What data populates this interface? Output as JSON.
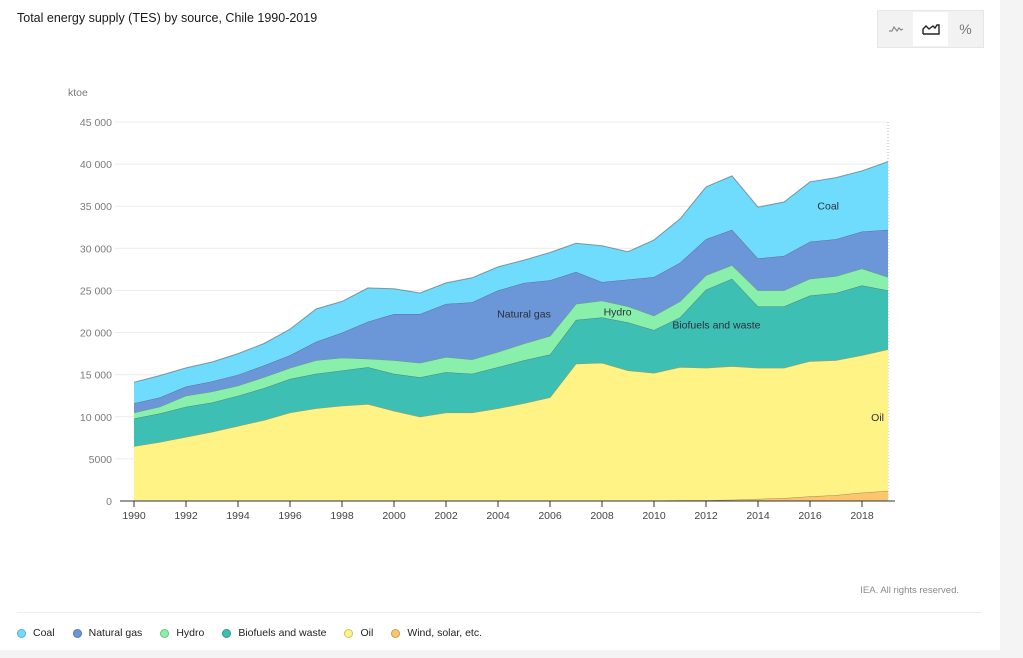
{
  "title": "Total energy supply (TES) by source, Chile 1990-2019",
  "toggle": {
    "options": [
      {
        "name": "line-chart-toggle",
        "icon": "line-chart-icon",
        "active": false
      },
      {
        "name": "area-chart-toggle",
        "icon": "area-chart-icon",
        "active": true
      },
      {
        "name": "percent-toggle",
        "icon": "percent-icon",
        "label": "%",
        "active": false
      }
    ]
  },
  "credit": "IEA. All rights reserved.",
  "legend": [
    {
      "label": "Coal",
      "color": "#6fdcfd"
    },
    {
      "label": "Natural gas",
      "color": "#6b96d8"
    },
    {
      "label": "Hydro",
      "color": "#88f0ab"
    },
    {
      "label": "Biofuels and waste",
      "color": "#3dbfb3"
    },
    {
      "label": "Oil",
      "color": "#fff385"
    },
    {
      "label": "Wind, solar, etc.",
      "color": "#fdc66c"
    }
  ],
  "chart_data": {
    "type": "area",
    "stacked": true,
    "title": "Total energy supply (TES) by source, Chile 1990-2019",
    "ylabel": "ktoe",
    "xlabel": "",
    "ylim": [
      0,
      45000
    ],
    "yticks": [
      0,
      5000,
      10000,
      15000,
      20000,
      25000,
      30000,
      35000,
      40000,
      45000
    ],
    "ytick_labels": [
      "0",
      "5000",
      "10 000",
      "15 000",
      "20 000",
      "25 000",
      "30 000",
      "35 000",
      "40 000",
      "45 000"
    ],
    "xticks": [
      1990,
      1992,
      1994,
      1996,
      1998,
      2000,
      2002,
      2004,
      2006,
      2008,
      2010,
      2012,
      2014,
      2016,
      2018
    ],
    "grid": true,
    "legend_position": "bottom",
    "x": [
      1990,
      1991,
      1992,
      1993,
      1994,
      1995,
      1996,
      1997,
      1998,
      1999,
      2000,
      2001,
      2002,
      2003,
      2004,
      2005,
      2006,
      2007,
      2008,
      2009,
      2010,
      2011,
      2012,
      2013,
      2014,
      2015,
      2016,
      2017,
      2018,
      2019
    ],
    "series": [
      {
        "name": "Wind, solar, etc.",
        "color": "#fdc66c",
        "values": [
          0,
          0,
          0,
          0,
          0,
          0,
          0,
          0,
          0,
          0,
          0,
          0,
          0,
          0,
          0,
          0,
          0,
          0,
          0,
          0,
          50,
          80,
          100,
          150,
          250,
          350,
          550,
          700,
          1000,
          1200
        ]
      },
      {
        "name": "Oil",
        "color": "#fff385",
        "values": [
          6500,
          7000,
          7600,
          8200,
          8900,
          9600,
          10500,
          11000,
          11300,
          11500,
          10700,
          10000,
          10500,
          10500,
          11000,
          11600,
          12300,
          16300,
          16400,
          15500,
          15150,
          15820,
          15700,
          15850,
          15550,
          15450,
          16050,
          16000,
          16300,
          16800
        ]
      },
      {
        "name": "Biofuels and waste",
        "color": "#3dbfb3",
        "values": [
          3300,
          3400,
          3600,
          3500,
          3600,
          3800,
          4000,
          4100,
          4200,
          4400,
          4400,
          4700,
          4800,
          4600,
          4900,
          5100,
          5100,
          5200,
          5400,
          5700,
          5100,
          5900,
          9300,
          10400,
          7300,
          7300,
          7800,
          8000,
          8300,
          7000
        ]
      },
      {
        "name": "Hydro",
        "color": "#88f0ab",
        "values": [
          700,
          800,
          1300,
          1300,
          1200,
          1300,
          1300,
          1600,
          1500,
          1000,
          1600,
          1700,
          1800,
          1700,
          1800,
          2000,
          2200,
          1900,
          2000,
          1900,
          1700,
          1900,
          1700,
          1600,
          1900,
          1900,
          2000,
          2000,
          2000,
          1600
        ]
      },
      {
        "name": "Natural gas",
        "color": "#6b96d8",
        "values": [
          1100,
          1100,
          1100,
          1200,
          1300,
          1400,
          1500,
          2200,
          3000,
          4400,
          5500,
          5800,
          6300,
          6800,
          7300,
          7200,
          6600,
          3800,
          2200,
          3200,
          4600,
          4600,
          4300,
          4200,
          3800,
          4100,
          4400,
          4400,
          4400,
          5600
        ]
      },
      {
        "name": "Coal",
        "color": "#6fdcfd",
        "values": [
          2500,
          2600,
          2200,
          2300,
          2500,
          2600,
          3100,
          3900,
          3700,
          4000,
          3000,
          2500,
          2500,
          2900,
          2800,
          2700,
          3300,
          3400,
          4300,
          3300,
          4400,
          5200,
          6200,
          6400,
          6100,
          6400,
          7100,
          7300,
          7200,
          8100
        ]
      }
    ],
    "annotations": [
      {
        "text": "Natural gas",
        "x": 2005,
        "y": 21800
      },
      {
        "text": "Hydro",
        "x": 2008.6,
        "y": 22000
      },
      {
        "text": "Biofuels and waste",
        "x": 2012.4,
        "y": 20500
      },
      {
        "text": "Coal",
        "x": 2016.7,
        "y": 34600
      },
      {
        "text": "Oil",
        "x": 2018.6,
        "y": 9500
      }
    ]
  }
}
